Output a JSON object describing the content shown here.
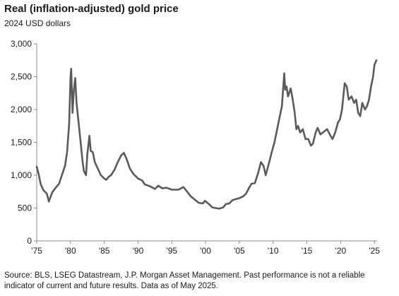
{
  "header": {
    "title": "Real (inflation-adjusted) gold price",
    "subtitle": "2024 USD dollars"
  },
  "footnote": "Source: BLS, LSEG Datastream, J.P. Morgan Asset Management. Past performance is not a reliable indicator of current and future results. Data as of May 2025.",
  "colors": {
    "line": "#5a5a5a",
    "axis": "#8c8c8c"
  },
  "chart_data": {
    "type": "line",
    "title": "Real (inflation-adjusted) gold price",
    "subtitle": "2024 USD dollars",
    "xlabel": "",
    "ylabel": "",
    "xlim": [
      1975,
      2025.4
    ],
    "ylim": [
      0,
      3000
    ],
    "x_ticks": [
      1975,
      1980,
      1985,
      1990,
      1995,
      2000,
      2005,
      2010,
      2015,
      2020,
      2025
    ],
    "x_tick_labels": [
      "'75",
      "'80",
      "'85",
      "'90",
      "'95",
      "'00",
      "'05",
      "'10",
      "'15",
      "'20",
      "'25"
    ],
    "y_ticks": [
      0,
      500,
      1000,
      1500,
      2000,
      2500,
      3000
    ],
    "y_tick_labels": [
      "0",
      "500",
      "1,000",
      "1,500",
      "2,000",
      "2,500",
      "3,000"
    ],
    "grid": false,
    "series": [
      {
        "x": [
          1975.0,
          1975.3,
          1975.6,
          1976.0,
          1976.5,
          1976.8,
          1977.3,
          1977.8,
          1978.3,
          1978.8,
          1979.2,
          1979.5,
          1979.8,
          1980.0,
          1980.1,
          1980.3,
          1980.5,
          1980.7,
          1980.9,
          1981.2,
          1981.5,
          1981.8,
          1982.0,
          1982.3,
          1982.5,
          1982.8,
          1983.0,
          1983.3,
          1983.6,
          1984.0,
          1984.5,
          1985.0,
          1985.3,
          1985.7,
          1986.0,
          1986.5,
          1987.0,
          1987.5,
          1987.9,
          1988.3,
          1988.8,
          1989.3,
          1990.0,
          1990.6,
          1991.0,
          1991.8,
          1992.5,
          1993.0,
          1993.6,
          1994.2,
          1995.0,
          1996.0,
          1996.7,
          1997.2,
          1997.8,
          1998.5,
          1999.0,
          1999.6,
          1999.9,
          2000.5,
          2001.0,
          2001.5,
          2002.0,
          2002.6,
          2003.0,
          2003.5,
          2004.0,
          2004.6,
          2005.0,
          2005.6,
          2006.0,
          2006.4,
          2006.8,
          2007.3,
          2007.8,
          2008.2,
          2008.6,
          2008.9,
          2009.3,
          2009.8,
          2010.2,
          2010.6,
          2010.9,
          2011.3,
          2011.65,
          2011.8,
          2012.0,
          2012.2,
          2012.6,
          2012.9,
          2013.2,
          2013.45,
          2013.7,
          2014.0,
          2014.4,
          2014.8,
          2015.2,
          2015.6,
          2015.9,
          2016.3,
          2016.6,
          2017.0,
          2017.5,
          2018.0,
          2018.5,
          2018.8,
          2019.2,
          2019.6,
          2019.9,
          2020.2,
          2020.6,
          2020.9,
          2021.2,
          2021.6,
          2022.0,
          2022.3,
          2022.6,
          2022.9,
          2023.2,
          2023.6,
          2023.9,
          2024.2,
          2024.5,
          2024.8,
          2025.0,
          2025.3
        ],
        "values": [
          1130,
          1010,
          860,
          770,
          720,
          600,
          740,
          810,
          870,
          1020,
          1150,
          1350,
          1780,
          2480,
          2620,
          1950,
          2300,
          2480,
          2100,
          1800,
          1500,
          1200,
          1060,
          1000,
          1320,
          1600,
          1370,
          1350,
          1200,
          1110,
          1000,
          950,
          930,
          980,
          1000,
          1080,
          1200,
          1300,
          1340,
          1250,
          1100,
          1020,
          950,
          920,
          860,
          830,
          790,
          840,
          800,
          810,
          780,
          780,
          820,
          760,
          680,
          620,
          580,
          570,
          610,
          560,
          510,
          500,
          490,
          510,
          560,
          570,
          620,
          640,
          650,
          680,
          720,
          800,
          870,
          880,
          1040,
          1200,
          1140,
          1000,
          1150,
          1350,
          1500,
          1700,
          1850,
          2050,
          2550,
          2300,
          2350,
          2200,
          2320,
          2150,
          1950,
          1700,
          1750,
          1650,
          1700,
          1550,
          1550,
          1450,
          1480,
          1650,
          1720,
          1620,
          1660,
          1700,
          1600,
          1550,
          1650,
          1800,
          1850,
          2000,
          2400,
          2350,
          2150,
          2200,
          2100,
          2150,
          1950,
          1900,
          2100,
          2000,
          2050,
          2150,
          2350,
          2500,
          2680,
          2750
        ]
      }
    ]
  }
}
